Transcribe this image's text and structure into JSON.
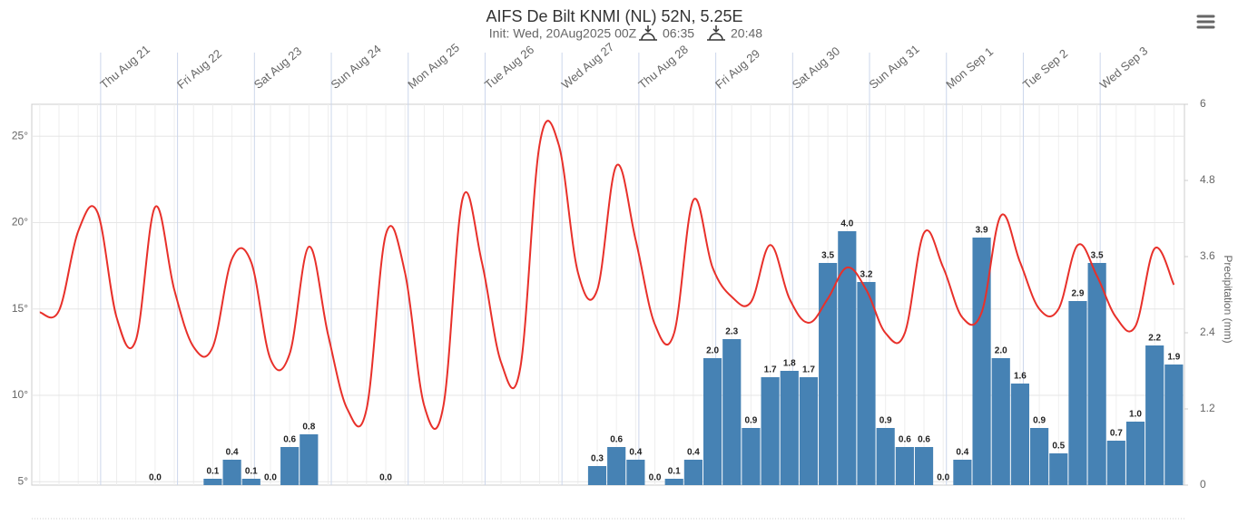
{
  "chart_data": {
    "type": "line",
    "title": "AIFS De Bilt KNMI (NL) 52N, 5.25E",
    "subtitle": "Init: Wed, 20Aug2025 00Z",
    "sunrise": "06:35",
    "sunset": "20:48",
    "y2_label": "Precipitation (mm)",
    "x": [
      5,
      11,
      17,
      23,
      29,
      35,
      41,
      47,
      53,
      59,
      65,
      71,
      77,
      83,
      89,
      95,
      101,
      107,
      113,
      119,
      125,
      131,
      137,
      143,
      149,
      155,
      161,
      167,
      173,
      179,
      185,
      191,
      197,
      203,
      209,
      215,
      221,
      227,
      233,
      239,
      245,
      251,
      257,
      263,
      269,
      275,
      281,
      287,
      293,
      299,
      305,
      311,
      317,
      323,
      329,
      335,
      341,
      347,
      353,
      359
    ],
    "xlim": [
      2.5,
      362.3
    ],
    "xticks": [
      {
        "value": 24,
        "label": "Thu Aug 21"
      },
      {
        "value": 48,
        "label": "Fri Aug 22"
      },
      {
        "value": 72,
        "label": "Sat Aug 23"
      },
      {
        "value": 96,
        "label": "Sun Aug 24"
      },
      {
        "value": 120,
        "label": "Mon Aug 25"
      },
      {
        "value": 144,
        "label": "Tue Aug 26"
      },
      {
        "value": 168,
        "label": "Wed Aug 27"
      },
      {
        "value": 192,
        "label": "Thu Aug 28"
      },
      {
        "value": 216,
        "label": "Fri Aug 29"
      },
      {
        "value": 240,
        "label": "Sat Aug 30"
      },
      {
        "value": 264,
        "label": "Sun Aug 31"
      },
      {
        "value": 288,
        "label": "Mon Sep 1"
      },
      {
        "value": 312,
        "label": "Tue Sep 2"
      },
      {
        "value": 336,
        "label": "Wed Sep 3"
      }
    ],
    "ylim": [
      4.8,
      26.85
    ],
    "yticks": [
      {
        "value": 5,
        "label": "5°"
      },
      {
        "value": 10,
        "label": "10°"
      },
      {
        "value": 15,
        "label": "15°"
      },
      {
        "value": 20,
        "label": "20°"
      },
      {
        "value": 25,
        "label": "25°"
      }
    ],
    "y2lim": [
      0,
      6
    ],
    "y2ticks": [
      0,
      1.2,
      2.4,
      3.6,
      4.8,
      6
    ],
    "grid": true,
    "series": [
      {
        "type": "line",
        "color": "#e8302a",
        "values": [
          14.8,
          14.9,
          19.5,
          20.6,
          14.5,
          13.2,
          20.9,
          16.1,
          12.8,
          12.8,
          17.9,
          17.7,
          12.1,
          12.4,
          18.6,
          13.5,
          9.2,
          9.2,
          19.3,
          17.1,
          9.4,
          9.4,
          21.4,
          17.7,
          11.9,
          11.6,
          24.5,
          24.5,
          17.1,
          16.1,
          23.3,
          19.0,
          14.1,
          13.6,
          21.3,
          17.4,
          15.7,
          15.4,
          18.7,
          15.6,
          14.2,
          15.6,
          17.4,
          16.1,
          13.6,
          13.6,
          19.4,
          17.4,
          14.5,
          14.8,
          20.4,
          17.7,
          15.0,
          15.0,
          18.7,
          16.9,
          14.5,
          14.0,
          18.5,
          16.4
        ]
      },
      {
        "type": "bar",
        "axis": "y2",
        "color": "#4682b4",
        "values": [
          null,
          null,
          null,
          null,
          null,
          null,
          0.0,
          null,
          null,
          0.1,
          0.4,
          0.1,
          0.0,
          0.6,
          0.8,
          null,
          null,
          null,
          0.0,
          null,
          null,
          null,
          null,
          null,
          null,
          null,
          null,
          null,
          null,
          0.3,
          0.6,
          0.4,
          0.0,
          0.1,
          0.4,
          2.0,
          2.3,
          0.9,
          1.7,
          1.8,
          1.7,
          3.5,
          4.0,
          3.2,
          0.9,
          0.6,
          0.6,
          0.0,
          0.4,
          3.9,
          2.0,
          1.6,
          0.9,
          0.5,
          2.9,
          3.5,
          0.7,
          1.0,
          2.2,
          1.9
        ],
        "value_labels": [
          null,
          null,
          null,
          null,
          null,
          null,
          "0.0",
          null,
          null,
          "0.1",
          "0.4",
          "0.1",
          "0.0",
          "0.6",
          "0.8",
          null,
          null,
          null,
          "0.0",
          null,
          null,
          null,
          null,
          null,
          null,
          null,
          null,
          null,
          null,
          "0.3",
          "0.6",
          "0.4",
          "0.0",
          "0.1",
          "0.4",
          "2.0",
          "2.3",
          "0.9",
          "1.7",
          "1.8",
          "1.7",
          "3.5",
          "4.0",
          "3.2",
          "0.9",
          "0.6",
          "0.6",
          "0.0",
          "0.4",
          "3.9",
          "2.0",
          "1.6",
          "0.9",
          "0.5",
          "2.9",
          "3.5",
          "0.7",
          "1.0",
          "2.2",
          "1.9"
        ]
      }
    ]
  }
}
